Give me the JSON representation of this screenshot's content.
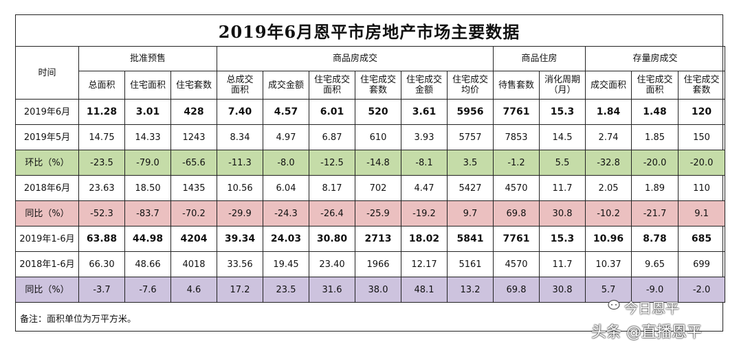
{
  "title": "2019年6月恩平市房地产市场主要数据",
  "header": {
    "time": "时间",
    "groups": [
      "批准预售",
      "商品房成交",
      "商品住房",
      "存量房成交"
    ],
    "columns": [
      "总面积",
      "住宅面积",
      "住宅套数",
      "总成交\n面积",
      "成交金额",
      "住宅成交\n面积",
      "住宅成交\n套数",
      "住宅成交\n金额",
      "住宅成交\n均价",
      "待售套数",
      "消化周期\n（月）",
      "成交面积",
      "住宅成交\n面积",
      "住宅成交\n套数"
    ]
  },
  "rows": [
    {
      "label": "2019年6月",
      "values": [
        "11.28",
        "3.01",
        "428",
        "7.40",
        "4.57",
        "6.01",
        "520",
        "3.61",
        "5956",
        "7761",
        "15.3",
        "1.84",
        "1.48",
        "120"
      ]
    },
    {
      "label": "2019年5月",
      "values": [
        "14.75",
        "14.33",
        "1243",
        "8.34",
        "4.97",
        "6.87",
        "610",
        "3.93",
        "5757",
        "7853",
        "14.5",
        "2.74",
        "1.85",
        "150"
      ]
    },
    {
      "label": "环比（%）",
      "values": [
        "-23.5",
        "-79.0",
        "-65.6",
        "-11.3",
        "-8.0",
        "-12.5",
        "-14.8",
        "-8.1",
        "3.5",
        "-1.2",
        "5.5",
        "-32.8",
        "-20.0",
        "-20.0"
      ]
    },
    {
      "label": "2018年6月",
      "values": [
        "23.63",
        "18.50",
        "1435",
        "10.56",
        "6.04",
        "8.17",
        "702",
        "4.47",
        "5427",
        "4570",
        "11.7",
        "2.05",
        "1.89",
        "110"
      ]
    },
    {
      "label": "同比（%）",
      "values": [
        "-52.3",
        "-83.7",
        "-70.2",
        "-29.9",
        "-24.3",
        "-26.4",
        "-25.9",
        "-19.2",
        "9.7",
        "69.8",
        "30.8",
        "-10.2",
        "-21.7",
        "9.1"
      ]
    },
    {
      "label": "2019年1-6月",
      "values": [
        "63.88",
        "44.98",
        "4204",
        "39.34",
        "24.03",
        "30.80",
        "2713",
        "18.02",
        "5841",
        "7761",
        "15.3",
        "10.96",
        "8.78",
        "685"
      ]
    },
    {
      "label": "2018年1-6月",
      "values": [
        "66.30",
        "48.66",
        "4018",
        "33.56",
        "19.45",
        "23.40",
        "1966",
        "12.17",
        "5161",
        "4570",
        "11.7",
        "10.37",
        "9.65",
        "699"
      ]
    },
    {
      "label": "同比（%）",
      "values": [
        "-3.7",
        "-7.6",
        "4.6",
        "17.2",
        "23.5",
        "31.6",
        "38.0",
        "48.1",
        "13.2",
        "69.8",
        "30.8",
        "5.7",
        "-9.0",
        "-2.0"
      ]
    }
  ],
  "note": "备注：面积单位为万平方米。",
  "watermark": {
    "line1": "今日恩平",
    "line2": "头条 @直播恩平"
  },
  "colors": {
    "green": "#c5dca8",
    "pink": "#ebc0c0",
    "purple": "#cdc3de"
  }
}
